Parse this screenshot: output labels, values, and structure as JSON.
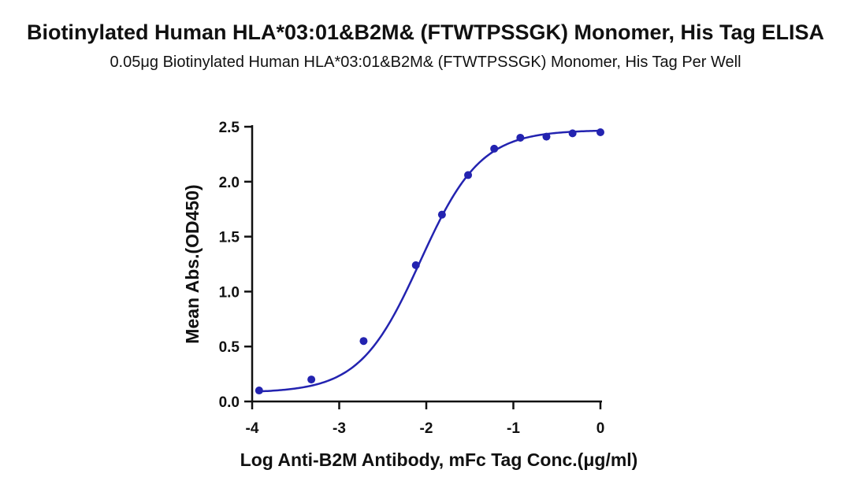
{
  "title": "Biotinylated Human HLA*03:01&B2M& (FTWTPSSGK) Monomer, His Tag ELISA",
  "subtitle": "0.05μg Biotinylated Human HLA*03:01&B2M& (FTWTPSSGK) Monomer, His Tag Per Well",
  "colors": {
    "series": "#2323b0",
    "axis": "#111111"
  },
  "chart_data": {
    "type": "scatter",
    "xlabel": "Log Anti-B2M Antibody, mFc Tag Conc.(μg/ml)",
    "ylabel": "Mean Abs.(OD450)",
    "xlim": [
      -4,
      0
    ],
    "ylim": [
      0,
      2.5
    ],
    "xticks": [
      "-4",
      "-3",
      "-2",
      "-1",
      "0"
    ],
    "yticks": [
      "0.0",
      "0.5",
      "1.0",
      "1.5",
      "2.0",
      "2.5"
    ],
    "grid": false,
    "series": [
      {
        "x": [
          -3.92,
          -3.32,
          -2.72,
          -2.12,
          -1.82,
          -1.52,
          -1.22,
          -0.92,
          -0.62,
          -0.32,
          0.0
        ],
        "y": [
          0.1,
          0.2,
          0.55,
          1.24,
          1.7,
          2.06,
          2.3,
          2.4,
          2.41,
          2.44,
          2.45
        ]
      }
    ],
    "fit": {
      "type": "4PL",
      "bottom": 0.08,
      "top": 2.47,
      "logEC50": -2.07,
      "hill": 1.25
    }
  }
}
